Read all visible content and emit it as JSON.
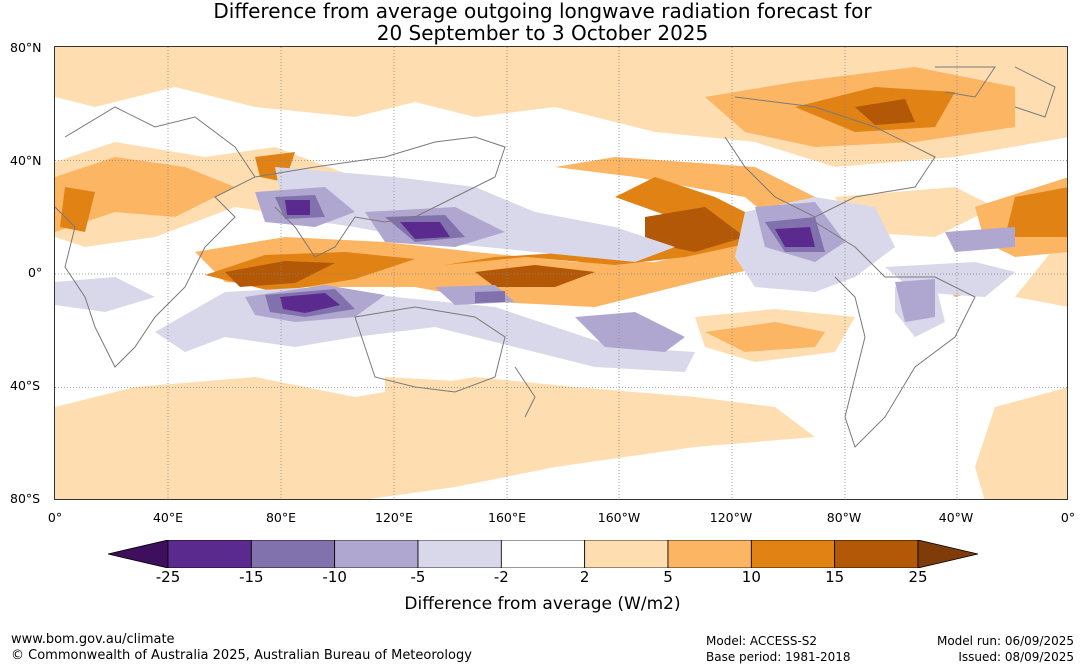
{
  "title": {
    "line1": "Difference from average outgoing longwave radiation forecast for",
    "line2": "20 September to 3 October 2025"
  },
  "lat_labels": [
    "80°N",
    "40°N",
    "0°",
    "40°S",
    "80°S"
  ],
  "lon_labels": [
    "0°",
    "40°E",
    "80°E",
    "120°E",
    "160°E",
    "160°W",
    "120°W",
    "80°W",
    "40°W",
    "0°"
  ],
  "colorbar": {
    "ticks": [
      "-25",
      "-15",
      "-10",
      "-5",
      "-2",
      "2",
      "5",
      "10",
      "15",
      "25"
    ],
    "title": "Difference from average (W/m2)",
    "colors": [
      "#3d0f5c",
      "#5a2a8e",
      "#8171ad",
      "#b0a7d0",
      "#d9d7ea",
      "#ffffff",
      "#fedeb1",
      "#fbb563",
      "#e08214",
      "#b35806",
      "#7f3b08"
    ]
  },
  "footer": {
    "url": "www.bom.gov.au/climate",
    "copyright": "© Commonwealth of Australia 2025, Australian Bureau of Meteorology",
    "model": "Model: ACCESS-S2",
    "base_period": "Base period: 1981-2018",
    "model_run": "Model run: 06/09/2025",
    "issued": "Issued: 08/09/2025"
  }
}
